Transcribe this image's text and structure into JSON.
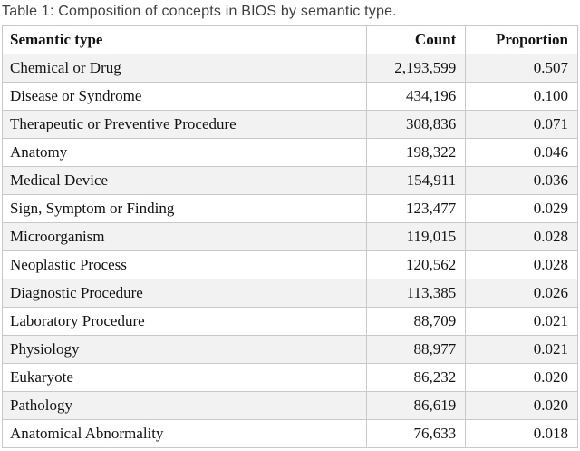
{
  "caption": "Table 1: Composition of concepts in BIOS by semantic type.",
  "table": {
    "columns": [
      "Semantic type",
      "Count",
      "Proportion"
    ],
    "rows": [
      {
        "type": "Chemical or Drug",
        "count": "2,193,599",
        "proportion": "0.507"
      },
      {
        "type": "Disease or Syndrome",
        "count": "434,196",
        "proportion": "0.100"
      },
      {
        "type": "Therapeutic or Preventive Procedure",
        "count": "308,836",
        "proportion": "0.071"
      },
      {
        "type": "Anatomy",
        "count": "198,322",
        "proportion": "0.046"
      },
      {
        "type": "Medical Device",
        "count": "154,911",
        "proportion": "0.036"
      },
      {
        "type": "Sign, Symptom or Finding",
        "count": "123,477",
        "proportion": "0.029"
      },
      {
        "type": "Microorganism",
        "count": "119,015",
        "proportion": "0.028"
      },
      {
        "type": "Neoplastic Process",
        "count": "120,562",
        "proportion": "0.028"
      },
      {
        "type": "Diagnostic Procedure",
        "count": "113,385",
        "proportion": "0.026"
      },
      {
        "type": "Laboratory Procedure",
        "count": "88,709",
        "proportion": "0.021"
      },
      {
        "type": "Physiology",
        "count": "88,977",
        "proportion": "0.021"
      },
      {
        "type": "Eukaryote",
        "count": "86,232",
        "proportion": "0.020"
      },
      {
        "type": "Pathology",
        "count": "86,619",
        "proportion": "0.020"
      },
      {
        "type": "Anatomical Abnormality",
        "count": "76,633",
        "proportion": "0.018"
      }
    ]
  },
  "colors": {
    "row_shaded": "#f2f2f2",
    "row_plain": "#ffffff",
    "border": "#c9c9c9",
    "caption_text": "#3f3f3f",
    "body_text": "#131313"
  }
}
